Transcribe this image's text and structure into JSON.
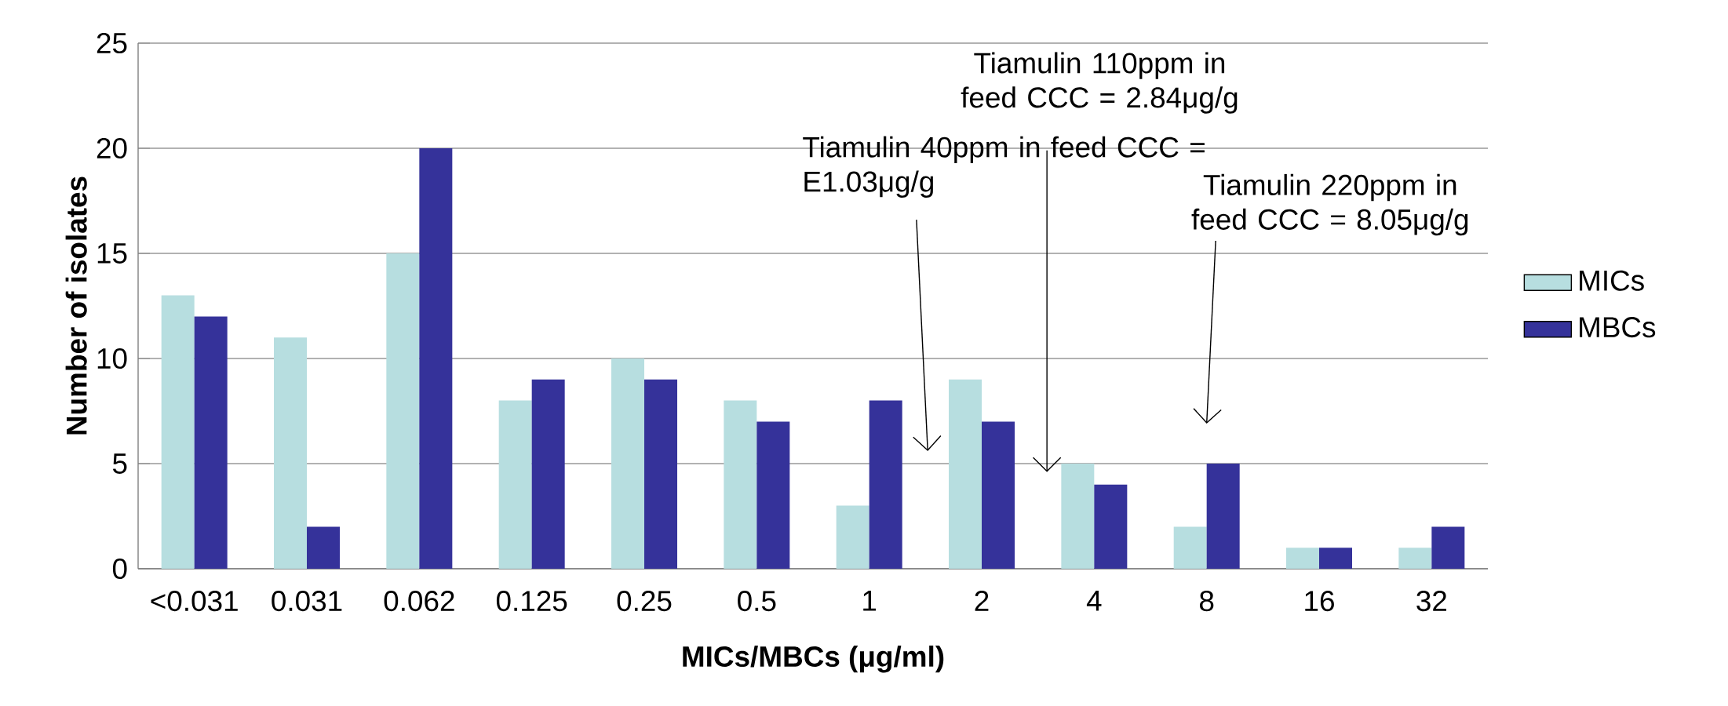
{
  "chart_data": {
    "type": "bar",
    "xlabel": "MICs/MBCs (μg/ml)",
    "ylabel": "Number of isolates",
    "categories": [
      "<0.031",
      "0.031",
      "0.062",
      "0.125",
      "0.25",
      "0.5",
      "1",
      "2",
      "4",
      "8",
      "16",
      "32"
    ],
    "series": [
      {
        "name": "MICs",
        "color": "#b7dee0",
        "values": [
          13,
          11,
          15,
          8,
          10,
          8,
          3,
          9,
          5,
          2,
          1,
          1
        ]
      },
      {
        "name": "MBCs",
        "color": "#35329a",
        "values": [
          12,
          2,
          20,
          9,
          9,
          7,
          8,
          7,
          4,
          5,
          1,
          2
        ]
      }
    ],
    "ylim": [
      0,
      25
    ],
    "yticks": [
      0,
      5,
      10,
      15,
      20,
      25
    ],
    "grid": "y",
    "legend": "right",
    "annotations": [
      "Tiamulin 40ppm in feed CCC = E1.03μg/g",
      "Tiamulin 110ppm in feed CCC = 2.84μg/g",
      "Tiamulin 220ppm in feed CCC = 8.05μg/g"
    ]
  }
}
